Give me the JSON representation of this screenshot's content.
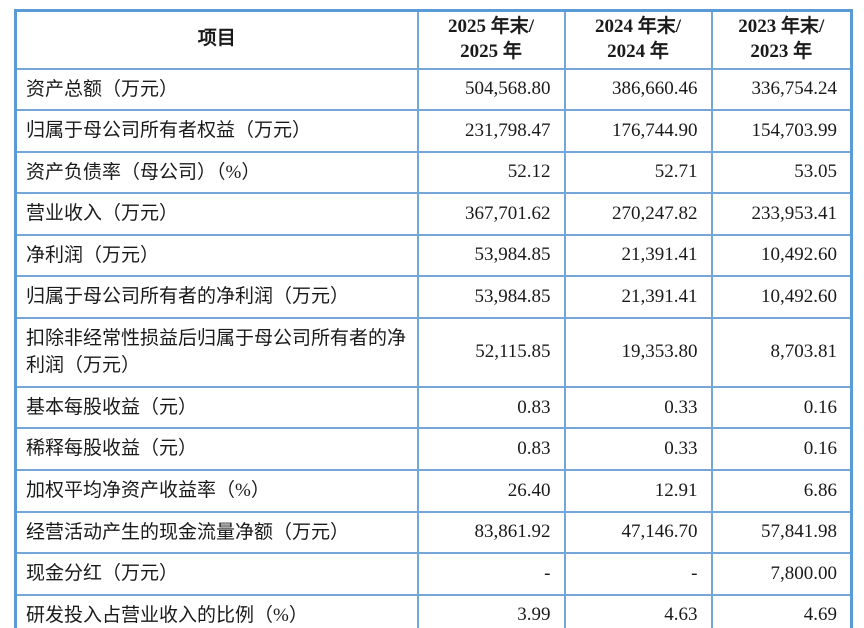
{
  "table": {
    "header": {
      "item": "项目",
      "col_2025_line1": "2025 年末/",
      "col_2025_line2": "2025 年",
      "col_2024_line1": "2024 年末/",
      "col_2024_line2": "2024 年",
      "col_2023_line1": "2023 年末/",
      "col_2023_line2": "2023 年"
    },
    "rows": [
      {
        "label": "资产总额（万元）",
        "v2025": "504,568.80",
        "v2024": "386,660.46",
        "v2023": "336,754.24"
      },
      {
        "label": "归属于母公司所有者权益（万元）",
        "v2025": "231,798.47",
        "v2024": "176,744.90",
        "v2023": "154,703.99"
      },
      {
        "label": "资产负债率（母公司）（%）",
        "v2025": "52.12",
        "v2024": "52.71",
        "v2023": "53.05"
      },
      {
        "label": "营业收入（万元）",
        "v2025": "367,701.62",
        "v2024": "270,247.82",
        "v2023": "233,953.41"
      },
      {
        "label": "净利润（万元）",
        "v2025": "53,984.85",
        "v2024": "21,391.41",
        "v2023": "10,492.60"
      },
      {
        "label": "归属于母公司所有者的净利润（万元）",
        "v2025": "53,984.85",
        "v2024": "21,391.41",
        "v2023": "10,492.60"
      },
      {
        "label": "扣除非经常性损益后归属于母公司所有者的净利润（万元）",
        "v2025": "52,115.85",
        "v2024": "19,353.80",
        "v2023": "8,703.81"
      },
      {
        "label": "基本每股收益（元）",
        "v2025": "0.83",
        "v2024": "0.33",
        "v2023": "0.16"
      },
      {
        "label": "稀释每股收益（元）",
        "v2025": "0.83",
        "v2024": "0.33",
        "v2023": "0.16"
      },
      {
        "label": "加权平均净资产收益率（%）",
        "v2025": "26.40",
        "v2024": "12.91",
        "v2023": "6.86"
      },
      {
        "label": "经营活动产生的现金流量净额（万元）",
        "v2025": "83,861.92",
        "v2024": "47,146.70",
        "v2023": "57,841.98"
      },
      {
        "label": "现金分红（万元）",
        "v2025": "-",
        "v2024": "-",
        "v2023": "7,800.00"
      },
      {
        "label": "研发投入占营业收入的比例（%）",
        "v2025": "3.99",
        "v2024": "4.63",
        "v2023": "4.69"
      }
    ],
    "colors": {
      "outer_border": "#5b9bd5",
      "inner_border": "#74a7d8"
    }
  }
}
